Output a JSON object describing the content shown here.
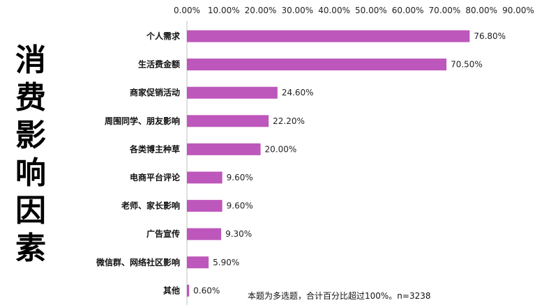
{
  "side_title": "消费影响因素",
  "note": "本题为多选题，合计百分比超过100%。n=3238",
  "colors": {
    "bar": "#BD57BB",
    "axis": "#bfbfbf"
  },
  "chart_data": {
    "type": "bar",
    "orientation": "horizontal",
    "title": "消费影响因素",
    "categories": [
      "个人需求",
      "生活费金额",
      "商家促销活动",
      "周围同学、朋友影响",
      "各类博主种草",
      "电商平台评论",
      "老师、家长影响",
      "广告宣传",
      "微信群、网络社区影响",
      "其他"
    ],
    "values": [
      76.8,
      70.5,
      24.6,
      22.2,
      20.0,
      9.6,
      9.6,
      9.3,
      5.9,
      0.6
    ],
    "value_labels": [
      "76.80%",
      "70.50%",
      "24.60%",
      "22.20%",
      "20.00%",
      "9.60%",
      "9.60%",
      "9.30%",
      "5.90%",
      "0.60%"
    ],
    "xlim": [
      0,
      90
    ],
    "xticks": [
      0,
      10,
      20,
      30,
      40,
      50,
      60,
      70,
      80,
      90
    ],
    "xtick_labels": [
      "0.00%",
      "10.00%",
      "20.00%",
      "30.00%",
      "40.00%",
      "50.00%",
      "60.00%",
      "70.00%",
      "80.00%",
      "90.00%"
    ],
    "xaxis_position": "top",
    "grid": false,
    "legend": "none"
  }
}
